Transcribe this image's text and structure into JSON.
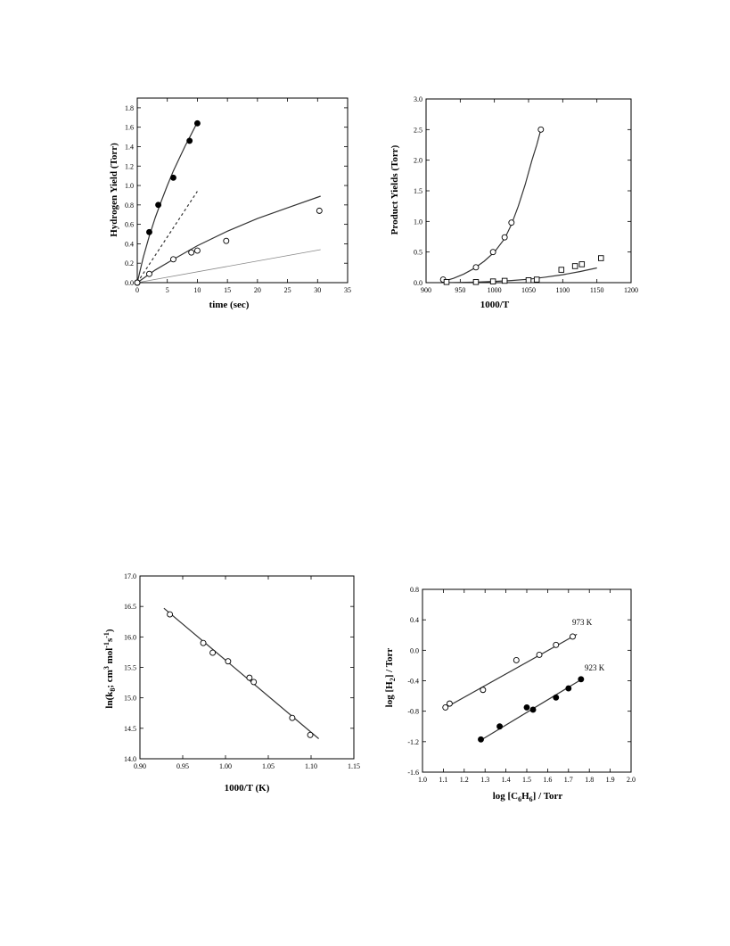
{
  "chart_data": [
    {
      "type": "scatter",
      "xlabel": "time (sec)",
      "ylabel": "Hydrogen Yield (Torr)",
      "xlim": [
        0,
        35
      ],
      "ylim": [
        0,
        1.9
      ],
      "xticks": [
        "0",
        "5",
        "10",
        "15",
        "20",
        "25",
        "30",
        "35"
      ],
      "yticks": [
        "0.0",
        "0.2",
        "0.4",
        "0.6",
        "0.8",
        "1.0",
        "1.2",
        "1.4",
        "1.6",
        "1.8"
      ],
      "series": [
        {
          "marker": "filled-circle",
          "x": [
            0,
            2,
            3.5,
            6,
            8.7,
            10
          ],
          "y": [
            0,
            0.52,
            0.8,
            1.08,
            1.46,
            1.64
          ]
        },
        {
          "marker": "open-circle",
          "x": [
            0,
            2,
            6,
            9,
            10,
            14.8,
            30.3
          ],
          "y": [
            0,
            0.09,
            0.24,
            0.31,
            0.33,
            0.43,
            0.74
          ]
        }
      ],
      "lines": [
        {
          "style": "solid",
          "x": [
            0,
            1,
            2,
            3,
            4,
            5,
            6,
            7,
            8,
            9,
            10
          ],
          "y": [
            0,
            0.26,
            0.48,
            0.67,
            0.84,
            1.0,
            1.15,
            1.28,
            1.41,
            1.53,
            1.65
          ]
        },
        {
          "style": "dashed",
          "x": [
            0,
            10
          ],
          "y": [
            0,
            0.94
          ]
        },
        {
          "style": "solid",
          "x": [
            0,
            3,
            6,
            10,
            15,
            20,
            25,
            30.5
          ],
          "y": [
            0,
            0.13,
            0.24,
            0.38,
            0.53,
            0.66,
            0.77,
            0.89
          ]
        },
        {
          "style": "thin",
          "x": [
            0,
            30.5
          ],
          "y": [
            0,
            0.34
          ]
        }
      ]
    },
    {
      "type": "scatter",
      "xlabel": "1000/T",
      "ylabel": "Product Yields (Torr)",
      "xlim": [
        900,
        1200
      ],
      "ylim": [
        0,
        3.0
      ],
      "xticks": [
        "900",
        "950",
        "1000",
        "1050",
        "1100",
        "1150",
        "1200"
      ],
      "yticks": [
        "0.0",
        "0.5",
        "1.0",
        "1.5",
        "2.0",
        "2.5",
        "3.0"
      ],
      "series": [
        {
          "marker": "open-circle",
          "x": [
            925,
            973,
            998,
            1015,
            1025,
            1068
          ],
          "y": [
            0.05,
            0.25,
            0.5,
            0.74,
            0.98,
            2.5
          ]
        },
        {
          "marker": "open-square",
          "x": [
            930,
            973,
            998,
            1015,
            1050,
            1062,
            1098,
            1118,
            1128,
            1156
          ],
          "y": [
            0.01,
            0.01,
            0.02,
            0.03,
            0.04,
            0.05,
            0.21,
            0.27,
            0.3,
            0.4
          ]
        }
      ],
      "lines": [
        {
          "style": "solid",
          "x": [
            925,
            940,
            955,
            970,
            985,
            1000,
            1015,
            1025,
            1035,
            1045,
            1055,
            1062,
            1068
          ],
          "y": [
            0.02,
            0.07,
            0.14,
            0.23,
            0.35,
            0.5,
            0.72,
            0.95,
            1.25,
            1.6,
            2.0,
            2.25,
            2.5
          ]
        },
        {
          "style": "solid",
          "x": [
            925,
            950,
            975,
            1000,
            1025,
            1050,
            1075,
            1100,
            1125,
            1150
          ],
          "y": [
            0.0,
            0.005,
            0.01,
            0.02,
            0.035,
            0.055,
            0.09,
            0.13,
            0.18,
            0.24
          ]
        }
      ]
    },
    {
      "type": "scatter",
      "xlabel": "1000/T (K)",
      "ylabel_parts": [
        "ln(k",
        "8",
        "; cm",
        "3",
        " mol",
        "-1",
        "s",
        "-1",
        ")"
      ],
      "xlim": [
        0.9,
        1.15
      ],
      "ylim": [
        14.0,
        17.0
      ],
      "xticks": [
        "0.90",
        "0.95",
        "1.00",
        "1.05",
        "1.10",
        "1.15"
      ],
      "yticks": [
        "14.0",
        "14.5",
        "15.0",
        "15.5",
        "16.0",
        "16.5",
        "17.0"
      ],
      "series": [
        {
          "marker": "open-circle",
          "x": [
            0.935,
            0.974,
            0.985,
            1.003,
            1.028,
            1.033,
            1.078,
            1.099
          ],
          "y": [
            16.37,
            15.9,
            15.74,
            15.6,
            15.33,
            15.26,
            14.67,
            14.39
          ]
        }
      ],
      "lines": [
        {
          "style": "solid",
          "x": [
            0.928,
            1.109
          ],
          "y": [
            16.47,
            14.33
          ]
        }
      ]
    },
    {
      "type": "scatter",
      "xlabel_parts": [
        "log [C",
        "6",
        "H",
        "6",
        "] / Torr"
      ],
      "ylabel_parts": [
        "log [H",
        "2",
        "] / Torr"
      ],
      "xlim": [
        1.0,
        2.0
      ],
      "ylim": [
        -1.6,
        0.8
      ],
      "xticks": [
        "1.0",
        "1.1",
        "1.2",
        "1.3",
        "1.4",
        "1.5",
        "1.6",
        "1.7",
        "1.8",
        "1.9",
        "2.0"
      ],
      "yticks": [
        "-1.6",
        "-1.2",
        "-0.8",
        "-0.4",
        "0.0",
        "0.4",
        "0.8"
      ],
      "annotations": [
        "973 K",
        "923 K"
      ],
      "series": [
        {
          "name": "973 K",
          "marker": "open-circle",
          "x": [
            1.11,
            1.13,
            1.29,
            1.45,
            1.56,
            1.64,
            1.72
          ],
          "y": [
            -0.75,
            -0.7,
            -0.52,
            -0.13,
            -0.06,
            0.07,
            0.18
          ]
        },
        {
          "name": "923 K",
          "marker": "filled-circle",
          "x": [
            1.28,
            1.37,
            1.5,
            1.53,
            1.64,
            1.7,
            1.76
          ],
          "y": [
            -1.17,
            -1.0,
            -0.75,
            -0.78,
            -0.62,
            -0.5,
            -0.38
          ]
        }
      ],
      "lines": [
        {
          "style": "solid",
          "x": [
            1.1,
            1.74
          ],
          "y": [
            -0.77,
            0.21
          ]
        },
        {
          "style": "solid",
          "x": [
            1.28,
            1.77
          ],
          "y": [
            -1.18,
            -0.37
          ]
        }
      ]
    }
  ]
}
